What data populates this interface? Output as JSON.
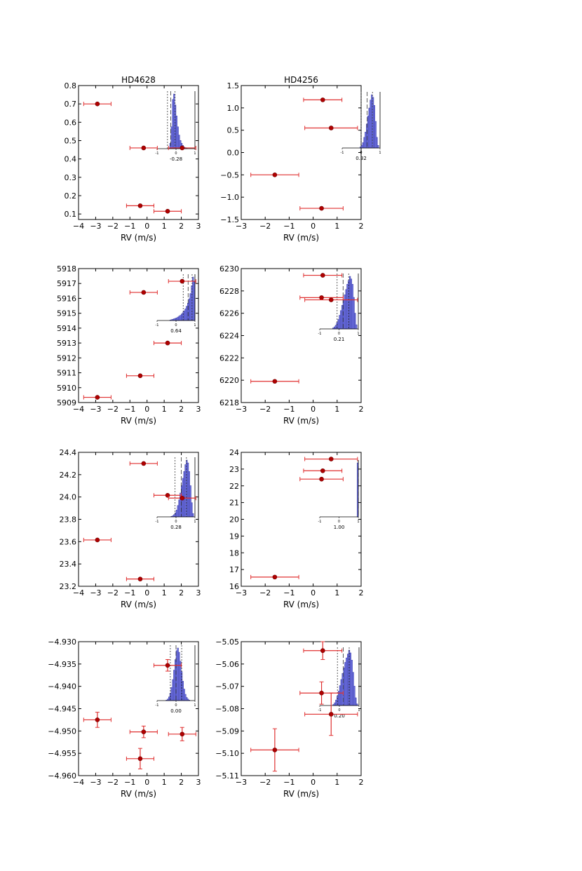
{
  "colors": {
    "points": "#b00000",
    "errorbars": "#e03030",
    "hist_fill": "#6f72e0",
    "hist_edge": "#2c2f9a",
    "axis": "#000000"
  },
  "chart_data": [
    {
      "type": "scatter",
      "title": "HD4628",
      "subtitle": "",
      "xlabel": "RV (m/s)",
      "ylabel": "",
      "xlim": [
        -4,
        3
      ],
      "ylim": [
        0.07,
        0.8
      ],
      "xticks": [
        -4,
        -3,
        -2,
        -1,
        0,
        1,
        2,
        3
      ],
      "yticks": [
        0.1,
        0.2,
        0.3,
        0.4,
        0.5,
        0.6,
        0.7,
        0.8
      ],
      "ydec": 1,
      "grid": false,
      "points": [
        {
          "x": -2.9,
          "y": 0.7,
          "xerr": 0.8,
          "yerr": 0
        },
        {
          "x": -0.2,
          "y": 0.46,
          "xerr": 0.8,
          "yerr": 0
        },
        {
          "x": -0.4,
          "y": 0.145,
          "xerr": 0.8,
          "yerr": 0
        },
        {
          "x": 1.2,
          "y": 0.115,
          "xerr": 0.8,
          "yerr": 0
        },
        {
          "x": 2.05,
          "y": 0.46,
          "xerr": 0.8,
          "yerr": 0
        }
      ],
      "inset": {
        "corr_label": "-0.28",
        "tick_labels": [
          "-1",
          "0",
          "1"
        ],
        "hist": [
          0,
          0,
          0,
          0,
          0,
          0,
          0,
          0,
          0,
          0,
          0.1,
          0.4,
          0.9,
          1.0,
          0.8,
          0.6,
          0.4,
          0.25,
          0.15,
          0.1,
          0.06,
          0.03,
          0.02,
          0.01,
          0,
          0,
          0,
          0,
          0,
          0
        ],
        "vlines": [
          {
            "x": -0.28,
            "dash": "6,3"
          },
          {
            "x": -0.45,
            "dash": "2,2"
          },
          {
            "x": -0.05,
            "dash": "2,2"
          }
        ]
      }
    },
    {
      "type": "scatter",
      "title": "HD4256",
      "subtitle": "",
      "xlabel": "RV (m/s)",
      "ylabel": "",
      "xlim": [
        -3,
        2
      ],
      "ylim": [
        -1.5,
        1.5
      ],
      "xticks": [
        -3,
        -2,
        -1,
        0,
        1,
        2
      ],
      "yticks": [
        -1.5,
        -1.0,
        -0.5,
        0.0,
        0.5,
        1.0,
        1.5
      ],
      "ydec": 1,
      "grid": false,
      "points": [
        {
          "x": 0.4,
          "y": 1.18,
          "xerr": 0.8,
          "yerr": 0
        },
        {
          "x": 0.75,
          "y": 0.55,
          "xerr": 1.1,
          "yerr": 0
        },
        {
          "x": -1.6,
          "y": -0.5,
          "xerr": 1.0,
          "yerr": 0
        },
        {
          "x": 0.35,
          "y": -1.25,
          "xerr": 0.9,
          "yerr": 0
        }
      ],
      "inset": {
        "corr_label": "0.32",
        "tick_labels": [
          "-1",
          "0",
          "1"
        ],
        "hist": [
          0,
          0,
          0,
          0,
          0,
          0,
          0,
          0,
          0,
          0,
          0,
          0,
          0,
          0,
          0.02,
          0.05,
          0.1,
          0.2,
          0.3,
          0.45,
          0.6,
          0.75,
          0.9,
          1.0,
          0.95,
          0.8,
          0.5,
          0.2,
          0.05,
          0
        ],
        "vlines": [
          {
            "x": 0.32,
            "dash": "6,3"
          },
          {
            "x": 0.0,
            "dash": "2,2"
          },
          {
            "x": 0.6,
            "dash": "2,2"
          }
        ]
      }
    },
    {
      "type": "scatter",
      "title": "",
      "subtitle": "",
      "xlabel": "RV (m/s)",
      "ylabel": "",
      "xlim": [
        -4,
        3
      ],
      "ylim": [
        5909,
        5918
      ],
      "xticks": [
        -4,
        -3,
        -2,
        -1,
        0,
        1,
        2,
        3
      ],
      "yticks": [
        5909,
        5910,
        5911,
        5912,
        5913,
        5914,
        5915,
        5916,
        5917,
        5918
      ],
      "ydec": 0,
      "grid": false,
      "points": [
        {
          "x": -2.9,
          "y": 5909.35,
          "xerr": 0.8,
          "yerr": 0
        },
        {
          "x": -0.2,
          "y": 5916.4,
          "xerr": 0.8,
          "yerr": 0
        },
        {
          "x": -0.4,
          "y": 5910.8,
          "xerr": 0.8,
          "yerr": 0
        },
        {
          "x": 1.2,
          "y": 5913.0,
          "xerr": 0.8,
          "yerr": 0
        },
        {
          "x": 2.05,
          "y": 5917.15,
          "xerr": 0.8,
          "yerr": 0
        }
      ],
      "inset": {
        "corr_label": "0.64",
        "tick_labels": [
          "-1",
          "0",
          "1"
        ],
        "hist": [
          0,
          0,
          0,
          0,
          0,
          0,
          0,
          0,
          0,
          0,
          0.01,
          0.02,
          0.03,
          0.04,
          0.05,
          0.06,
          0.08,
          0.1,
          0.12,
          0.15,
          0.18,
          0.22,
          0.27,
          0.33,
          0.4,
          0.5,
          0.62,
          0.8,
          1.0,
          0.9
        ],
        "vlines": [
          {
            "x": 0.64,
            "dash": "6,3"
          },
          {
            "x": 0.38,
            "dash": "2,2"
          },
          {
            "x": 0.85,
            "dash": "2,2"
          }
        ]
      }
    },
    {
      "type": "scatter",
      "title": "",
      "subtitle": "",
      "xlabel": "RV (m/s)",
      "ylabel": "",
      "xlim": [
        -3,
        2
      ],
      "ylim": [
        6218,
        6230
      ],
      "xticks": [
        -3,
        -2,
        -1,
        0,
        1,
        2
      ],
      "yticks": [
        6218,
        6220,
        6222,
        6224,
        6226,
        6228,
        6230
      ],
      "ydec": 0,
      "grid": false,
      "points": [
        {
          "x": 0.4,
          "y": 6229.4,
          "xerr": 0.8,
          "yerr": 0
        },
        {
          "x": 0.35,
          "y": 6227.4,
          "xerr": 0.9,
          "yerr": 0
        },
        {
          "x": 0.75,
          "y": 6227.2,
          "xerr": 1.1,
          "yerr": 0
        },
        {
          "x": -1.6,
          "y": 6219.9,
          "xerr": 1.0,
          "yerr": 0
        }
      ],
      "inset": {
        "corr_label": "0.21",
        "tick_labels": [
          "-1",
          "0",
          "1"
        ],
        "hist": [
          0,
          0,
          0,
          0,
          0,
          0,
          0,
          0,
          0,
          0,
          0.02,
          0.04,
          0.07,
          0.12,
          0.18,
          0.26,
          0.35,
          0.45,
          0.55,
          0.65,
          0.75,
          0.85,
          0.92,
          1.0,
          0.95,
          0.85,
          0.6,
          0.3,
          0.08,
          0
        ],
        "vlines": [
          {
            "x": 0.21,
            "dash": "6,3"
          },
          {
            "x": -0.1,
            "dash": "2,2"
          },
          {
            "x": 0.5,
            "dash": "2,2"
          }
        ]
      }
    },
    {
      "type": "scatter",
      "title": "",
      "subtitle": "",
      "xlabel": "RV (m/s)",
      "ylabel": "",
      "xlim": [
        -4,
        3
      ],
      "ylim": [
        23.2,
        24.4
      ],
      "xticks": [
        -4,
        -3,
        -2,
        -1,
        0,
        1,
        2,
        3
      ],
      "yticks": [
        23.2,
        23.4,
        23.6,
        23.8,
        24.0,
        24.2,
        24.4
      ],
      "ydec": 1,
      "grid": false,
      "points": [
        {
          "x": -2.9,
          "y": 23.615,
          "xerr": 0.8,
          "yerr": 0
        },
        {
          "x": -0.2,
          "y": 24.3,
          "xerr": 0.8,
          "yerr": 0
        },
        {
          "x": -0.4,
          "y": 23.265,
          "xerr": 0.8,
          "yerr": 0
        },
        {
          "x": 1.2,
          "y": 24.015,
          "xerr": 0.8,
          "yerr": 0
        },
        {
          "x": 2.05,
          "y": 23.99,
          "xerr": 0.8,
          "yerr": 0
        }
      ],
      "inset": {
        "corr_label": "0.28",
        "tick_labels": [
          "-1",
          "0",
          "1"
        ],
        "hist": [
          0,
          0,
          0,
          0,
          0,
          0,
          0,
          0,
          0,
          0,
          0,
          0.01,
          0.02,
          0.04,
          0.07,
          0.12,
          0.2,
          0.3,
          0.42,
          0.55,
          0.68,
          0.8,
          0.92,
          1.0,
          0.95,
          0.8,
          0.55,
          0.25,
          0.06,
          0
        ],
        "vlines": [
          {
            "x": 0.28,
            "dash": "6,3"
          },
          {
            "x": -0.05,
            "dash": "2,2"
          },
          {
            "x": 0.55,
            "dash": "2,2"
          }
        ]
      }
    },
    {
      "type": "scatter",
      "title": "",
      "subtitle": "",
      "xlabel": "RV (m/s)",
      "ylabel": "",
      "xlim": [
        -3,
        2
      ],
      "ylim": [
        16,
        24
      ],
      "xticks": [
        -3,
        -2,
        -1,
        0,
        1,
        2
      ],
      "yticks": [
        16,
        17,
        18,
        19,
        20,
        21,
        22,
        23,
        24
      ],
      "ydec": 0,
      "grid": false,
      "points": [
        {
          "x": 0.75,
          "y": 23.6,
          "xerr": 1.1,
          "yerr": 0
        },
        {
          "x": 0.4,
          "y": 22.9,
          "xerr": 0.8,
          "yerr": 0
        },
        {
          "x": 0.35,
          "y": 22.4,
          "xerr": 0.9,
          "yerr": 0
        },
        {
          "x": -1.6,
          "y": 16.55,
          "xerr": 1.0,
          "yerr": 0
        }
      ],
      "inset": {
        "corr_label": "1.00",
        "tick_labels": [
          "-1",
          "0",
          "1"
        ],
        "hist": [
          0,
          0,
          0,
          0,
          0,
          0,
          0,
          0,
          0,
          0,
          0,
          0,
          0,
          0,
          0,
          0,
          0,
          0,
          0,
          0,
          0,
          0,
          0,
          0,
          0,
          0,
          0,
          0,
          0,
          1.0
        ],
        "vlines": [
          {
            "x": 1.0,
            "dash": "6,3"
          }
        ]
      }
    },
    {
      "type": "scatter",
      "title": "",
      "subtitle": "",
      "xlabel": "RV (m/s)",
      "ylabel": "",
      "xlim": [
        -4,
        3
      ],
      "ylim": [
        -4.96,
        -4.93
      ],
      "xticks": [
        -4,
        -3,
        -2,
        -1,
        0,
        1,
        2,
        3
      ],
      "yticks": [
        -4.96,
        -4.955,
        -4.95,
        -4.945,
        -4.94,
        -4.935,
        -4.93
      ],
      "ydec": 3,
      "grid": false,
      "points": [
        {
          "x": -2.9,
          "y": -4.9475,
          "xerr": 0.8,
          "yerr": 0.0017
        },
        {
          "x": -0.2,
          "y": -4.9502,
          "xerr": 0.8,
          "yerr": 0.0013
        },
        {
          "x": -0.4,
          "y": -4.9562,
          "xerr": 0.8,
          "yerr": 0.0023
        },
        {
          "x": 1.2,
          "y": -4.9353,
          "xerr": 0.8,
          "yerr": 0.0013
        },
        {
          "x": 2.05,
          "y": -4.9507,
          "xerr": 0.8,
          "yerr": 0.0015
        }
      ],
      "inset": {
        "corr_label": "0.00",
        "tick_labels": [
          "-1",
          "0",
          "1"
        ],
        "hist": [
          0,
          0,
          0,
          0,
          0,
          0,
          0,
          0.01,
          0.03,
          0.07,
          0.14,
          0.25,
          0.4,
          0.58,
          0.78,
          0.95,
          1.0,
          0.92,
          0.75,
          0.55,
          0.37,
          0.22,
          0.12,
          0.06,
          0.03,
          0.01,
          0,
          0,
          0,
          0
        ],
        "vlines": [
          {
            "x": 0.0,
            "dash": "6,3"
          },
          {
            "x": -0.3,
            "dash": "2,2"
          },
          {
            "x": 0.3,
            "dash": "2,2"
          }
        ]
      }
    },
    {
      "type": "scatter",
      "title": "",
      "subtitle": "",
      "xlabel": "RV (m/s)",
      "ylabel": "",
      "xlim": [
        -3,
        2
      ],
      "ylim": [
        -5.11,
        -5.05
      ],
      "xticks": [
        -3,
        -2,
        -1,
        0,
        1,
        2
      ],
      "yticks": [
        -5.11,
        -5.1,
        -5.09,
        -5.08,
        -5.07,
        -5.06,
        -5.05
      ],
      "ydec": 2,
      "grid": false,
      "points": [
        {
          "x": 0.4,
          "y": -5.054,
          "xerr": 0.8,
          "yerr": 0.004
        },
        {
          "x": 0.35,
          "y": -5.073,
          "xerr": 0.9,
          "yerr": 0.005
        },
        {
          "x": 0.75,
          "y": -5.0825,
          "xerr": 1.1,
          "yerr": 0.0095
        },
        {
          "x": -1.6,
          "y": -5.0985,
          "xerr": 1.0,
          "yerr": 0.0095
        }
      ],
      "inset": {
        "corr_label": "0.20",
        "tick_labels": [
          "-1",
          "0",
          "1"
        ],
        "hist": [
          0,
          0,
          0,
          0,
          0,
          0,
          0,
          0,
          0,
          0,
          0.02,
          0.05,
          0.1,
          0.17,
          0.26,
          0.36,
          0.47,
          0.58,
          0.68,
          0.78,
          0.86,
          0.93,
          1.0,
          0.95,
          0.82,
          0.6,
          0.35,
          0.14,
          0.03,
          0
        ],
        "vlines": [
          {
            "x": 0.2,
            "dash": "6,3"
          },
          {
            "x": -0.1,
            "dash": "2,2"
          },
          {
            "x": 0.5,
            "dash": "2,2"
          }
        ]
      }
    }
  ]
}
